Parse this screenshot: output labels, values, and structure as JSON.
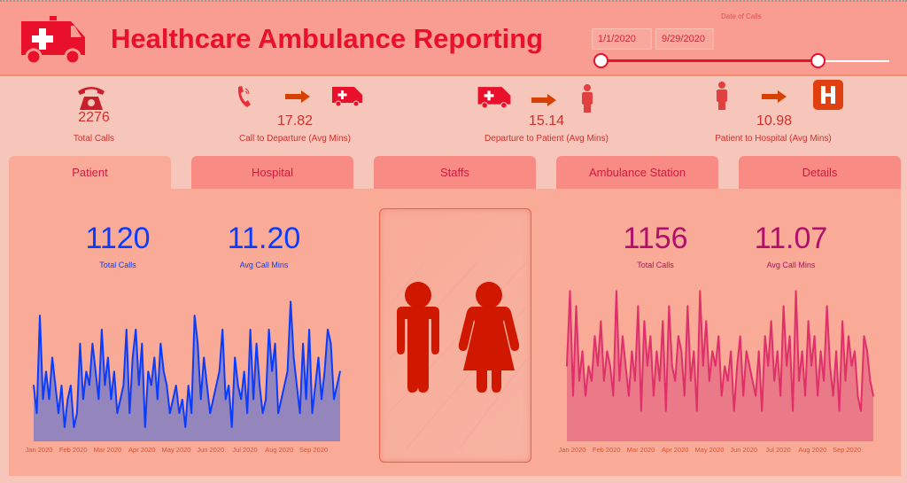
{
  "header": {
    "title": "Healthcare Ambulance Reporting",
    "date_filter_label": "Date of Calls",
    "start_date": "1/1/2020",
    "end_date": "9/29/2020",
    "slider_fraction": [
      0,
      0.75
    ],
    "logo_icon": "ambulance-icon"
  },
  "kpis": [
    {
      "value": "2276",
      "label": "Total Calls",
      "icons": [
        "telephone-icon"
      ]
    },
    {
      "value": "17.82",
      "label": "Call to Departure (Avg Mins)",
      "icons": [
        "phone-ringing-icon",
        "arrow-right-icon",
        "ambulance-icon"
      ]
    },
    {
      "value": "15.14",
      "label": "Departure to Patient (Avg Mins)",
      "icons": [
        "ambulance-icon",
        "arrow-right-icon",
        "person-icon"
      ]
    },
    {
      "value": "10.98",
      "label": "Patient to Hospital (Avg Mins)",
      "icons": [
        "person-icon",
        "arrow-right-icon",
        "hospital-icon"
      ]
    }
  ],
  "tabs": [
    {
      "label": "Patient",
      "active": true
    },
    {
      "label": "Hospital"
    },
    {
      "label": "Staffs"
    },
    {
      "label": "Ambulance Station"
    },
    {
      "label": "Details"
    }
  ],
  "male": {
    "total_calls": "1120",
    "total_calls_label": "Total Calls",
    "avg_mins": "11.20",
    "avg_mins_label": "Avg Call Mins",
    "color": "#0a3cff"
  },
  "female": {
    "total_calls": "1156",
    "total_calls_label": "Total Calls",
    "avg_mins": "11.07",
    "avg_mins_label": "Avg Call Mins",
    "color": "#e0306a"
  },
  "chart_data": [
    {
      "type": "area",
      "series": [
        {
          "values": [
            4,
            2,
            9,
            3,
            5,
            3,
            6,
            4,
            2,
            4,
            1,
            3,
            4,
            1,
            2,
            7,
            3,
            5,
            4,
            7,
            5,
            3,
            8,
            4,
            6,
            3,
            5,
            2,
            3,
            4,
            8,
            2,
            6,
            8,
            4,
            7,
            1,
            5,
            4,
            6,
            3,
            7,
            5,
            4,
            2,
            3,
            4,
            2,
            3,
            1,
            4,
            2,
            9,
            7,
            3,
            6,
            4,
            2,
            3,
            4,
            5,
            8,
            3,
            4,
            1,
            6,
            4,
            3,
            5,
            2,
            8,
            3,
            7,
            4,
            2,
            3,
            8,
            5,
            7,
            2,
            3,
            4,
            5,
            10,
            6,
            4,
            2,
            7,
            3,
            8,
            2,
            4,
            6,
            3,
            5,
            8,
            7,
            3,
            4,
            5
          ]
        }
      ],
      "x_ticks": [
        "Jan 2020",
        "Feb 2020",
        "Mar 2020",
        "Apr 2020",
        "May 2020",
        "Jun 2020",
        "Jul 2020",
        "Aug 2020",
        "Sep 2020"
      ],
      "ylim": [
        0,
        10
      ],
      "grid": false
    },
    {
      "type": "area",
      "series": [
        {
          "values": [
            5,
            10,
            3,
            9,
            4,
            6,
            3,
            5,
            4,
            7,
            5,
            8,
            4,
            6,
            5,
            3,
            10,
            4,
            7,
            5,
            3,
            6,
            4,
            9,
            2,
            8,
            5,
            7,
            3,
            6,
            4,
            8,
            2,
            9,
            5,
            4,
            7,
            6,
            3,
            9,
            4,
            6,
            2,
            10,
            5,
            8,
            4,
            6,
            5,
            7,
            3,
            5,
            4,
            6,
            2,
            5,
            7,
            3,
            6,
            5,
            4,
            3,
            6,
            2,
            7,
            5,
            8,
            4,
            6,
            3,
            9,
            5,
            7,
            2,
            10,
            4,
            6,
            3,
            8,
            5,
            7,
            3,
            6,
            4,
            9,
            5,
            3,
            6,
            2,
            8,
            4,
            7,
            5,
            6,
            3,
            2,
            7,
            6,
            4,
            3
          ]
        }
      ],
      "x_ticks": [
        "Jan 2020",
        "Feb 2020",
        "Mar 2020",
        "Apr 2020",
        "May 2020",
        "Jun 2020",
        "Jul 2020",
        "Aug 2020",
        "Sep 2020"
      ],
      "ylim": [
        0,
        10
      ],
      "grid": false
    }
  ]
}
